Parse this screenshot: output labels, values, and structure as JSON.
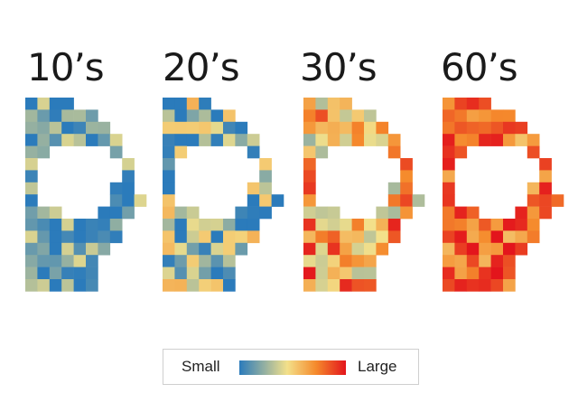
{
  "chart_data": {
    "type": "heatmap",
    "panels": [
      {
        "title": "10’s"
      },
      {
        "title": "20’s"
      },
      {
        "title": "30’s"
      },
      {
        "title": "60’s"
      }
    ],
    "value_scale": {
      "min_label": "Small",
      "max_label": "Large",
      "colors": [
        "#2b7bbb",
        "#f3e08a",
        "#f58a2c",
        "#e3151c"
      ]
    }
  }
}
